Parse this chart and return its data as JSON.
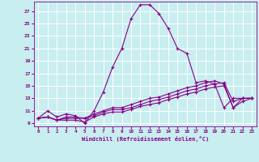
{
  "xlabel": "Windchill (Refroidissement éolien,°C)",
  "background_color": "#c8eef0",
  "grid_color": "#ffffff",
  "line_color": "#880088",
  "xlim": [
    -0.5,
    23.5
  ],
  "ylim": [
    8.5,
    28.5
  ],
  "xticks": [
    0,
    1,
    2,
    3,
    4,
    5,
    6,
    7,
    8,
    9,
    10,
    11,
    12,
    13,
    14,
    15,
    16,
    17,
    18,
    19,
    20,
    21,
    22,
    23
  ],
  "yticks": [
    9,
    11,
    13,
    15,
    17,
    19,
    21,
    23,
    25,
    27
  ],
  "curve1_x": [
    0,
    1,
    2,
    3,
    4,
    5,
    6,
    7,
    8,
    9,
    10,
    11,
    12,
    13,
    14,
    15,
    16,
    17,
    18,
    19,
    20,
    21,
    22,
    23
  ],
  "curve1_y": [
    9.8,
    11.0,
    10.0,
    10.5,
    10.2,
    9.0,
    11.0,
    14.0,
    18.0,
    21.0,
    25.8,
    28.0,
    28.0,
    26.6,
    24.2,
    21.0,
    20.2,
    15.5,
    15.8,
    15.3,
    11.5,
    13.0,
    13.0,
    13.0
  ],
  "curve2_x": [
    0,
    1,
    2,
    3,
    4,
    5,
    6,
    7,
    8,
    9,
    10,
    11,
    12,
    13,
    14,
    15,
    16,
    17,
    18,
    19,
    20,
    21,
    22,
    23
  ],
  "curve2_y": [
    9.8,
    10.0,
    9.5,
    10.0,
    10.0,
    9.8,
    10.5,
    11.0,
    11.5,
    11.5,
    12.0,
    12.5,
    13.0,
    13.2,
    13.7,
    14.2,
    14.7,
    15.0,
    15.5,
    15.8,
    15.3,
    11.5,
    13.0,
    13.0
  ],
  "curve3_x": [
    0,
    1,
    2,
    3,
    4,
    5,
    6,
    7,
    8,
    9,
    10,
    11,
    12,
    13,
    14,
    15,
    16,
    17,
    18,
    19,
    20,
    21,
    22,
    23
  ],
  "curve3_y": [
    9.8,
    10.0,
    9.5,
    9.8,
    9.8,
    9.8,
    10.2,
    10.8,
    11.2,
    11.2,
    11.5,
    12.0,
    12.5,
    12.8,
    13.2,
    13.7,
    14.2,
    14.5,
    15.0,
    15.3,
    15.5,
    12.5,
    13.0,
    13.0
  ],
  "curve4_x": [
    0,
    1,
    2,
    3,
    4,
    5,
    6,
    7,
    8,
    9,
    10,
    11,
    12,
    13,
    14,
    15,
    16,
    17,
    18,
    19,
    20,
    21,
    22,
    23
  ],
  "curve4_y": [
    9.8,
    10.0,
    9.5,
    9.5,
    9.5,
    9.2,
    10.0,
    10.5,
    10.8,
    10.8,
    11.2,
    11.7,
    12.0,
    12.3,
    12.8,
    13.2,
    13.7,
    14.0,
    14.5,
    14.8,
    15.0,
    11.5,
    12.5,
    13.0
  ]
}
